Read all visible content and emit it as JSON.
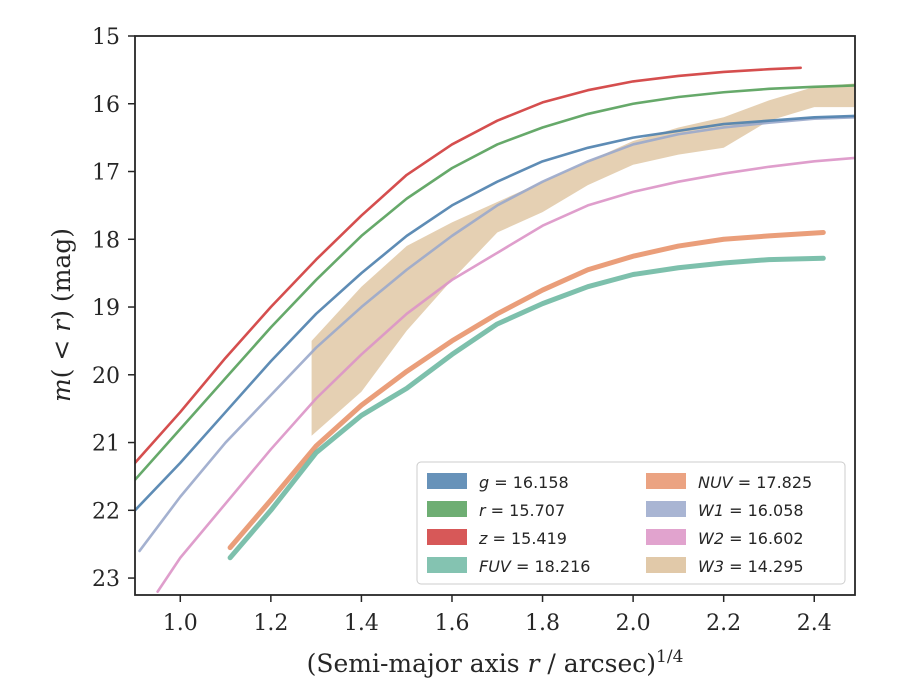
{
  "chart_data": {
    "type": "line",
    "xlabel": "(Semi-major axis r / arcsec)1/4",
    "ylabel": "m(< r) (mag)",
    "xlim": [
      0.9,
      2.49
    ],
    "ylim": [
      23.25,
      15.0
    ],
    "y_inverted": true,
    "x_ticks": [
      "1.0",
      "1.2",
      "1.4",
      "1.6",
      "1.8",
      "2.0",
      "2.2",
      "2.4"
    ],
    "y_ticks": [
      "15",
      "16",
      "17",
      "18",
      "19",
      "20",
      "21",
      "22",
      "23"
    ],
    "grid": false,
    "legend_position": "lower-right",
    "legend_columns": 2,
    "series": [
      {
        "name": "g = 16.158",
        "var": "g",
        "value": "16.158",
        "color": "#4c7fad",
        "style": "line",
        "x": [
          0.9,
          1.0,
          1.1,
          1.2,
          1.3,
          1.4,
          1.5,
          1.6,
          1.7,
          1.8,
          1.9,
          2.0,
          2.1,
          2.2,
          2.3,
          2.4,
          2.49
        ],
        "y": [
          22.0,
          21.3,
          20.55,
          19.8,
          19.1,
          18.5,
          17.95,
          17.5,
          17.15,
          16.85,
          16.65,
          16.5,
          16.4,
          16.3,
          16.25,
          16.2,
          16.18
        ]
      },
      {
        "name": "r = 15.707",
        "var": "r",
        "value": "15.707",
        "color": "#55a05a",
        "style": "line",
        "x": [
          0.9,
          1.0,
          1.1,
          1.2,
          1.3,
          1.4,
          1.5,
          1.6,
          1.7,
          1.8,
          1.9,
          2.0,
          2.1,
          2.2,
          2.3,
          2.4,
          2.49
        ],
        "y": [
          21.55,
          20.8,
          20.05,
          19.3,
          18.6,
          17.95,
          17.4,
          16.95,
          16.6,
          16.35,
          16.15,
          16.0,
          15.9,
          15.83,
          15.78,
          15.75,
          15.73
        ]
      },
      {
        "name": "z = 15.419",
        "var": "z",
        "value": "15.419",
        "color": "#d03b3b",
        "style": "line",
        "x": [
          0.9,
          1.0,
          1.1,
          1.2,
          1.3,
          1.4,
          1.5,
          1.6,
          1.7,
          1.8,
          1.9,
          2.0,
          2.1,
          2.2,
          2.3,
          2.37
        ],
        "y": [
          21.3,
          20.55,
          19.75,
          19.0,
          18.3,
          17.65,
          17.05,
          16.6,
          16.25,
          15.98,
          15.8,
          15.67,
          15.59,
          15.53,
          15.49,
          15.47
        ]
      },
      {
        "name": "FUV = 18.216",
        "var": "FUV",
        "value": "18.216",
        "color": "#6fb9a3",
        "style": "band",
        "x": [
          1.11,
          1.2,
          1.3,
          1.4,
          1.5,
          1.6,
          1.7,
          1.8,
          1.9,
          2.0,
          2.1,
          2.2,
          2.3,
          2.42
        ],
        "y": [
          22.7,
          22.0,
          21.15,
          20.6,
          20.2,
          19.7,
          19.25,
          18.95,
          18.7,
          18.52,
          18.42,
          18.35,
          18.3,
          18.28
        ]
      },
      {
        "name": "NUV = 17.825",
        "var": "NUV",
        "value": "17.825",
        "color": "#e8936c",
        "style": "band",
        "x": [
          1.11,
          1.2,
          1.3,
          1.4,
          1.5,
          1.6,
          1.7,
          1.8,
          1.9,
          2.0,
          2.1,
          2.2,
          2.3,
          2.42
        ],
        "y": [
          22.55,
          21.85,
          21.05,
          20.45,
          19.95,
          19.5,
          19.1,
          18.75,
          18.45,
          18.25,
          18.1,
          18.0,
          17.95,
          17.9
        ]
      },
      {
        "name": "W1 = 16.058",
        "var": "W1",
        "value": "16.058",
        "color": "#9aa8cb",
        "style": "line",
        "x": [
          0.91,
          1.0,
          1.1,
          1.2,
          1.3,
          1.4,
          1.5,
          1.6,
          1.7,
          1.8,
          1.9,
          2.0,
          2.1,
          2.2,
          2.3,
          2.4,
          2.49
        ],
        "y": [
          22.6,
          21.8,
          21.0,
          20.3,
          19.6,
          19.0,
          18.45,
          17.95,
          17.5,
          17.15,
          16.85,
          16.6,
          16.45,
          16.35,
          16.28,
          16.22,
          16.2
        ]
      },
      {
        "name": "W2 = 16.602",
        "var": "W2",
        "value": "16.602",
        "color": "#dc93c6",
        "style": "line",
        "x": [
          0.95,
          1.0,
          1.1,
          1.2,
          1.3,
          1.4,
          1.5,
          1.6,
          1.7,
          1.8,
          1.9,
          2.0,
          2.1,
          2.2,
          2.3,
          2.4,
          2.49
        ],
        "y": [
          23.2,
          22.7,
          21.9,
          21.1,
          20.35,
          19.7,
          19.1,
          18.6,
          18.2,
          17.8,
          17.5,
          17.3,
          17.15,
          17.03,
          16.93,
          16.85,
          16.8
        ]
      },
      {
        "name": "W3 = 14.295",
        "var": "W3",
        "value": "14.295",
        "color": "#dcc09a",
        "style": "band",
        "x": [
          1.29,
          1.4,
          1.5,
          1.6,
          1.7,
          1.8,
          1.9,
          2.0,
          2.1,
          2.2,
          2.3,
          2.4,
          2.49
        ],
        "y_low": [
          19.5,
          18.7,
          18.1,
          17.75,
          17.45,
          17.15,
          16.85,
          16.55,
          16.35,
          16.2,
          15.95,
          15.75,
          15.7
        ],
        "y_high": [
          20.9,
          20.25,
          19.35,
          18.6,
          17.9,
          17.6,
          17.2,
          16.9,
          16.75,
          16.65,
          16.25,
          16.05,
          16.05
        ]
      }
    ]
  }
}
